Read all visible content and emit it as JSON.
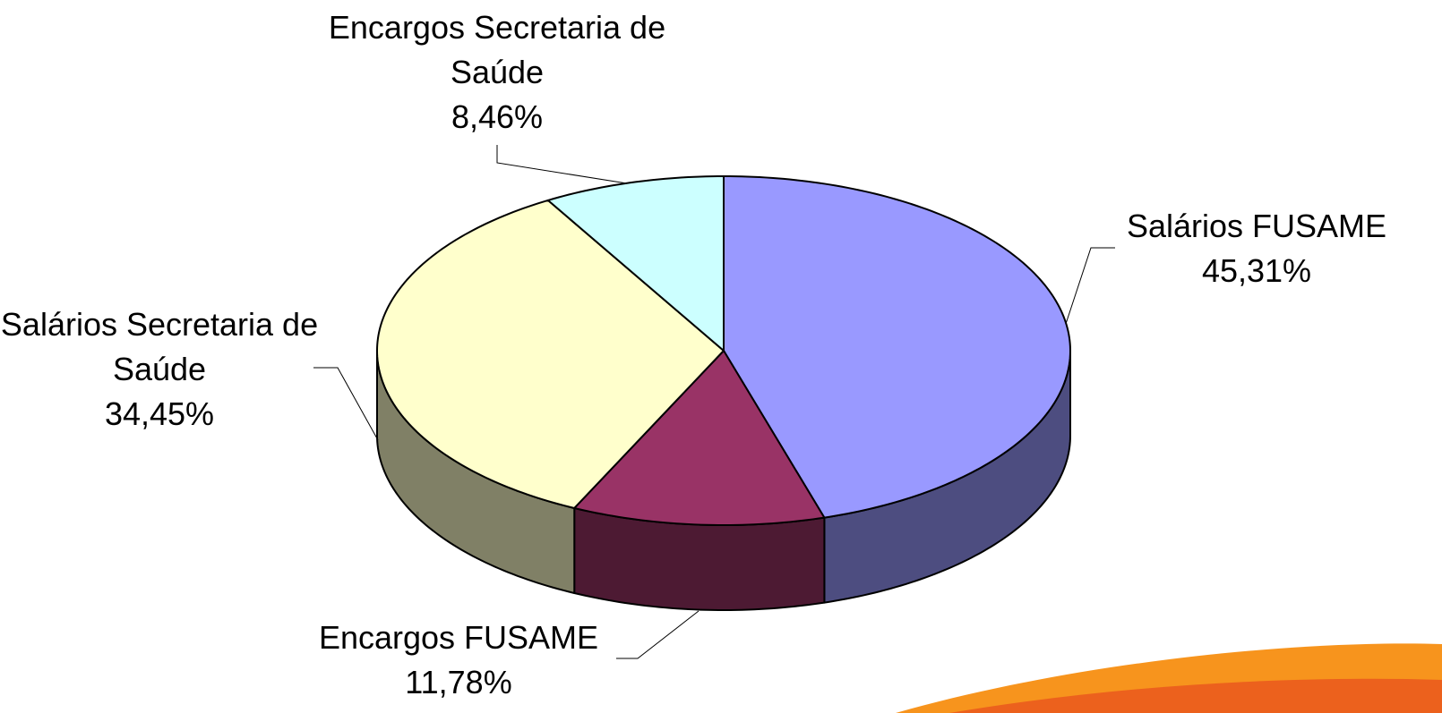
{
  "chart_data": {
    "type": "pie",
    "categories": [
      "Salários FUSAME",
      "Encargos FUSAME",
      "Salários Secretaria de Saúde",
      "Encargos Secretaria de Saúde"
    ],
    "values": [
      45.31,
      11.78,
      34.45,
      8.46
    ],
    "value_labels": [
      "45,31%",
      "11,78%",
      "34,45%",
      "8,46%"
    ],
    "colors": [
      "#9999ff",
      "#993366",
      "#ffffcc",
      "#ccffff"
    ],
    "three_d": true
  }
}
